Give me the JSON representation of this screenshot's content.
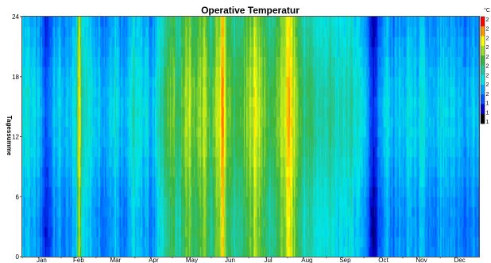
{
  "chart_data": {
    "type": "heatmap",
    "title": "Operative Temperatur",
    "ylabel": "Tagessumme",
    "colorbar_unit": "°C",
    "colorbar_tick_labels": [
      "2",
      "2",
      "2",
      "2",
      "2",
      "2",
      "2",
      "2",
      "2",
      "1",
      "1",
      "1"
    ],
    "x_tick_labels": [
      "Jan",
      "Feb",
      "Mar",
      "Apr",
      "May",
      "Jun",
      "Jul",
      "Aug",
      "Sep",
      "Oct",
      "Nov",
      "Dec"
    ],
    "y_ticks": [
      0,
      6,
      12,
      18,
      24
    ],
    "y_range": [
      0,
      24
    ],
    "day_range": [
      1,
      365
    ],
    "colormap": [
      "#000000",
      "#0000c8",
      "#0050ff",
      "#00a0ff",
      "#00e6e6",
      "#20c8a0",
      "#3cb43c",
      "#a0dc28",
      "#ffff00",
      "#ff9600",
      "#ff0000"
    ],
    "daily_level": [
      {
        "day": 1,
        "level": 0.36
      },
      {
        "day": 5,
        "level": 0.4
      },
      {
        "day": 10,
        "level": 0.33
      },
      {
        "day": 14,
        "level": 0.3
      },
      {
        "day": 18,
        "level": 0.2
      },
      {
        "day": 20,
        "level": 0.15
      },
      {
        "day": 22,
        "level": 0.2
      },
      {
        "day": 26,
        "level": 0.34
      },
      {
        "day": 31,
        "level": 0.32
      },
      {
        "day": 36,
        "level": 0.28
      },
      {
        "day": 40,
        "level": 0.3
      },
      {
        "day": 44,
        "level": 0.44
      },
      {
        "day": 46,
        "level": 0.8
      },
      {
        "day": 48,
        "level": 0.52
      },
      {
        "day": 52,
        "level": 0.4
      },
      {
        "day": 57,
        "level": 0.36
      },
      {
        "day": 62,
        "level": 0.34
      },
      {
        "day": 66,
        "level": 0.28
      },
      {
        "day": 70,
        "level": 0.33
      },
      {
        "day": 75,
        "level": 0.4
      },
      {
        "day": 80,
        "level": 0.3
      },
      {
        "day": 85,
        "level": 0.34
      },
      {
        "day": 90,
        "level": 0.42
      },
      {
        "day": 95,
        "level": 0.34
      },
      {
        "day": 100,
        "level": 0.38
      },
      {
        "day": 104,
        "level": 0.28
      },
      {
        "day": 108,
        "level": 0.36
      },
      {
        "day": 112,
        "level": 0.5
      },
      {
        "day": 117,
        "level": 0.56
      },
      {
        "day": 121,
        "level": 0.6
      },
      {
        "day": 126,
        "level": 0.52
      },
      {
        "day": 130,
        "level": 0.62
      },
      {
        "day": 134,
        "level": 0.7
      },
      {
        "day": 137,
        "level": 0.58
      },
      {
        "day": 142,
        "level": 0.62
      },
      {
        "day": 146,
        "level": 0.68
      },
      {
        "day": 150,
        "level": 0.56
      },
      {
        "day": 154,
        "level": 0.6
      },
      {
        "day": 158,
        "level": 0.72
      },
      {
        "day": 161,
        "level": 0.88
      },
      {
        "day": 164,
        "level": 0.62
      },
      {
        "day": 168,
        "level": 0.56
      },
      {
        "day": 172,
        "level": 0.52
      },
      {
        "day": 177,
        "level": 0.58
      },
      {
        "day": 181,
        "level": 0.62
      },
      {
        "day": 186,
        "level": 0.74
      },
      {
        "day": 190,
        "level": 0.7
      },
      {
        "day": 194,
        "level": 0.6
      },
      {
        "day": 198,
        "level": 0.54
      },
      {
        "day": 203,
        "level": 0.58
      },
      {
        "day": 208,
        "level": 0.66
      },
      {
        "day": 212,
        "level": 0.78
      },
      {
        "day": 214,
        "level": 0.84
      },
      {
        "day": 217,
        "level": 0.72
      },
      {
        "day": 221,
        "level": 0.6
      },
      {
        "day": 226,
        "level": 0.5
      },
      {
        "day": 231,
        "level": 0.52
      },
      {
        "day": 236,
        "level": 0.46
      },
      {
        "day": 241,
        "level": 0.44
      },
      {
        "day": 245,
        "level": 0.48
      },
      {
        "day": 250,
        "level": 0.44
      },
      {
        "day": 255,
        "level": 0.4
      },
      {
        "day": 260,
        "level": 0.46
      },
      {
        "day": 265,
        "level": 0.42
      },
      {
        "day": 270,
        "level": 0.4
      },
      {
        "day": 275,
        "level": 0.32
      },
      {
        "day": 278,
        "level": 0.2
      },
      {
        "day": 281,
        "level": 0.13
      },
      {
        "day": 284,
        "level": 0.18
      },
      {
        "day": 288,
        "level": 0.3
      },
      {
        "day": 292,
        "level": 0.34
      },
      {
        "day": 296,
        "level": 0.28
      },
      {
        "day": 300,
        "level": 0.33
      },
      {
        "day": 305,
        "level": 0.3
      },
      {
        "day": 310,
        "level": 0.36
      },
      {
        "day": 315,
        "level": 0.32
      },
      {
        "day": 320,
        "level": 0.36
      },
      {
        "day": 325,
        "level": 0.3
      },
      {
        "day": 330,
        "level": 0.26
      },
      {
        "day": 335,
        "level": 0.34
      },
      {
        "day": 340,
        "level": 0.3
      },
      {
        "day": 345,
        "level": 0.34
      },
      {
        "day": 350,
        "level": 0.3
      },
      {
        "day": 355,
        "level": 0.26
      },
      {
        "day": 360,
        "level": 0.32
      },
      {
        "day": 365,
        "level": 0.3
      }
    ],
    "grid": false,
    "colorbar_position": "right"
  }
}
